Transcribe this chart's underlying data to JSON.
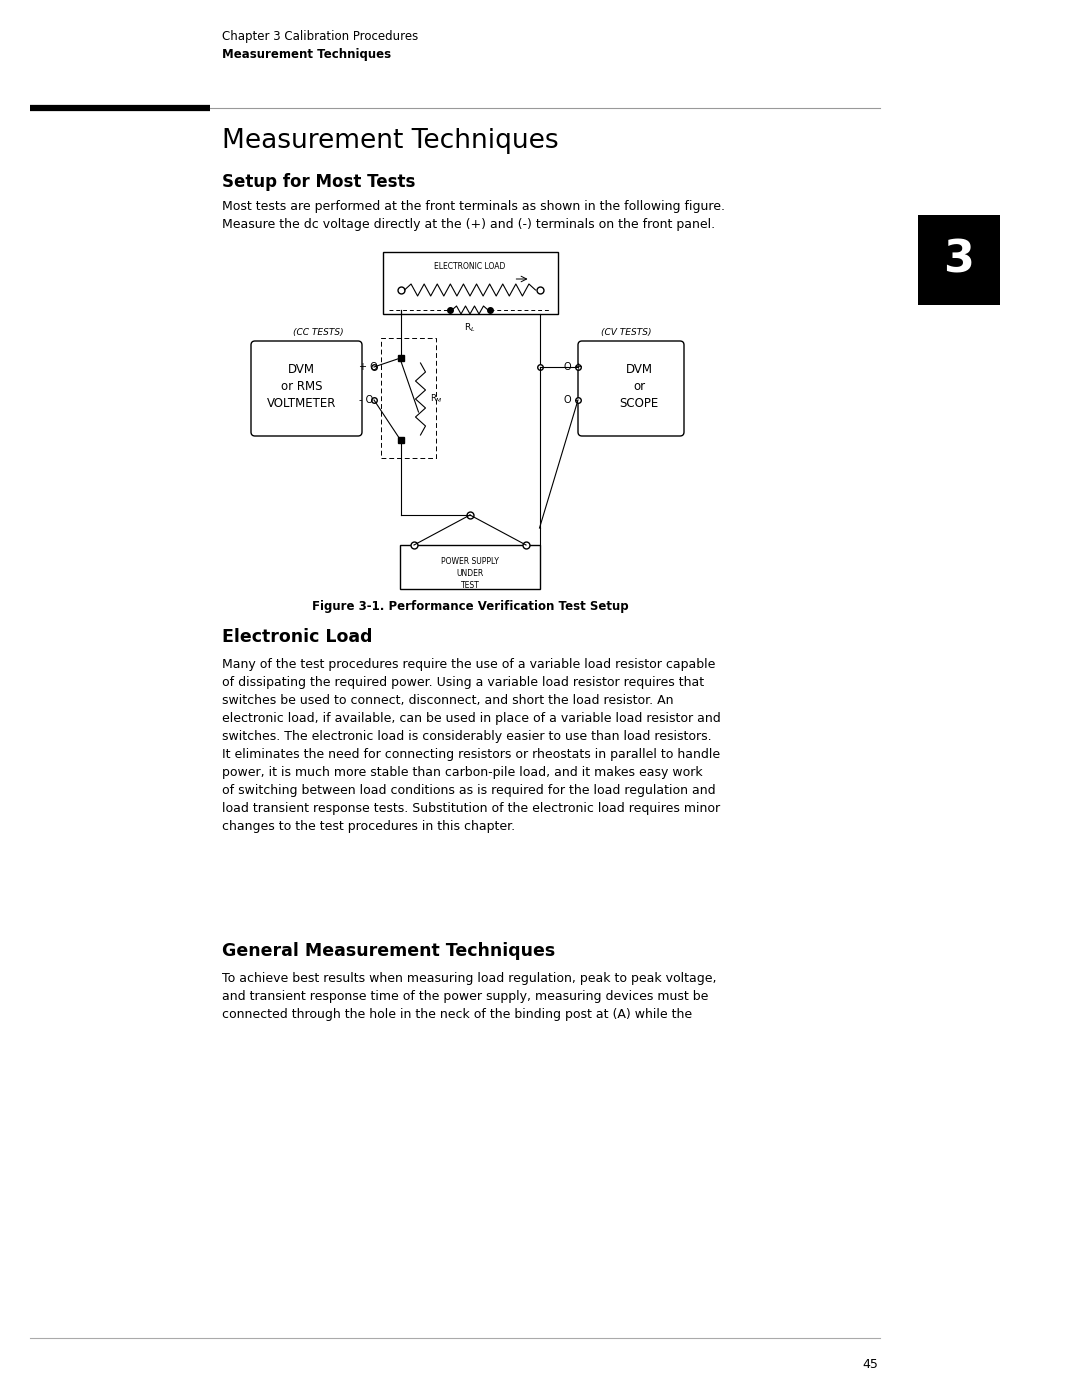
{
  "bg_color": "#ffffff",
  "header_line1": "Chapter 3 Calibration Procedures",
  "header_line2": "Measurement Techniques",
  "section_title": "Measurement Techniques",
  "subsection1": "Setup for Most Tests",
  "para1": "Most tests are performed at the front terminals as shown in the following figure.\nMeasure the dc voltage directly at the (+) and (-) terminals on the front panel.",
  "figure_caption": "Figure 3-1. Performance Verification Test Setup",
  "subsection2": "Electronic Load",
  "para2": "Many of the test procedures require the use of a variable load resistor capable\nof dissipating the required power. Using a variable load resistor requires that\nswitches be used to connect, disconnect, and short the load resistor. An\nelectronic load, if available, can be used in place of a variable load resistor and\nswitches. The electronic load is considerably easier to use than load resistors.\nIt eliminates the need for connecting resistors or rheostats in parallel to handle\npower, it is much more stable than carbon-pile load, and it makes easy work\nof switching between load conditions as is required for the load regulation and\nload transient response tests. Substitution of the electronic load requires minor\nchanges to the test procedures in this chapter.",
  "subsection3": "General Measurement Techniques",
  "para3": "To achieve best results when measuring load regulation, peak to peak voltage,\nand transient response time of the power supply, measuring devices must be\nconnected through the hole in the neck of the binding post at (A) while the",
  "page_number": "45",
  "tab_label": "3"
}
